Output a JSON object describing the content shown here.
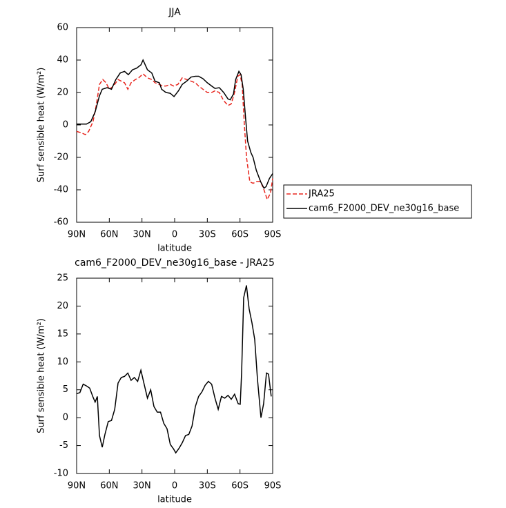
{
  "chart_data": [
    {
      "type": "line",
      "title": "JJA",
      "x_label": "latitude",
      "y_label": "Surf sensible heat (W/m²)",
      "xlim": [
        90,
        -90
      ],
      "xticks": [
        {
          "value": 90,
          "label": "90N"
        },
        {
          "value": 60,
          "label": "60N"
        },
        {
          "value": 30,
          "label": "30N"
        },
        0,
        {
          "value": -30,
          "label": "30S"
        },
        {
          "value": -60,
          "label": "60S"
        },
        {
          "value": -90,
          "label": "90S"
        }
      ],
      "ylim": [
        -60,
        60
      ],
      "yticks": [
        -60,
        -40,
        -20,
        0,
        20,
        40,
        60
      ],
      "legend": "right",
      "series": [
        {
          "name": "JRA25",
          "color": "#e8261e",
          "dash": true,
          "x": [
            90,
            85,
            82,
            79,
            75,
            72,
            69,
            66,
            63,
            60,
            56,
            52,
            49,
            46,
            43,
            40,
            36,
            33,
            29,
            25,
            21,
            18,
            14,
            11,
            8,
            4,
            1,
            -3,
            -7,
            -11,
            -15,
            -19,
            -22,
            -26,
            -30,
            -34,
            -37,
            -41,
            -45,
            -49,
            -52,
            -55,
            -58,
            -60,
            -62,
            -64,
            -66,
            -69,
            -72,
            -75,
            -79,
            -82,
            -85,
            -88,
            -90
          ],
          "values": [
            -4,
            -5,
            -6,
            -4,
            2,
            12,
            25,
            28,
            26,
            22,
            24,
            28,
            27,
            26,
            22,
            26,
            28,
            29,
            31.5,
            29,
            28,
            26,
            25,
            24,
            24,
            25,
            24,
            25,
            29,
            28,
            27,
            26,
            24,
            22,
            20,
            20,
            21,
            20,
            15,
            12,
            13,
            20,
            30,
            31,
            25,
            0,
            -20,
            -35,
            -36,
            -35,
            -35,
            -40,
            -46,
            -42,
            -33
          ]
        },
        {
          "name": "cam6_F2000_DEV_ne30g16_base",
          "color": "#000000",
          "dash": false,
          "x": [
            90,
            81,
            77,
            73,
            69,
            66.5,
            62,
            58,
            54,
            50,
            46,
            42.5,
            38.7,
            35,
            31,
            29,
            25,
            21,
            18,
            14,
            12,
            8,
            4,
            0.6,
            -3.5,
            -7,
            -11,
            -15,
            -19,
            -22,
            -26,
            -30,
            -34,
            -37,
            -41,
            -45,
            -49,
            -51,
            -54,
            -56,
            -59,
            -61,
            -63,
            -65,
            -67,
            -70,
            -72,
            -75,
            -79,
            -82,
            -84,
            -87,
            -90
          ],
          "values": [
            0.5,
            0.5,
            2,
            8,
            18,
            22,
            23,
            22,
            28,
            32,
            33,
            31,
            34,
            35,
            37,
            40,
            34,
            32,
            27,
            26,
            22,
            20,
            19.5,
            17.5,
            21,
            25,
            27,
            29.5,
            30,
            30,
            28.5,
            26,
            24,
            22.5,
            23,
            20,
            16,
            15.5,
            19,
            28,
            33,
            31,
            22,
            5,
            -10,
            -17,
            -20,
            -28,
            -35,
            -39,
            -38,
            -33,
            -30
          ]
        }
      ]
    },
    {
      "type": "line",
      "title": "cam6_F2000_DEV_ne30g16_base - JRA25",
      "x_label": "latitude",
      "y_label": "Surf sensible heat (W/m²)",
      "xlim": [
        90,
        -90
      ],
      "xticks": [
        {
          "value": 90,
          "label": "90N"
        },
        {
          "value": 60,
          "label": "60N"
        },
        {
          "value": 30,
          "label": "30N"
        },
        0,
        {
          "value": -30,
          "label": "30S"
        },
        {
          "value": -60,
          "label": "60S"
        },
        {
          "value": -90,
          "label": "90S"
        }
      ],
      "ylim": [
        -10,
        25
      ],
      "yticks": [
        -10,
        -5,
        0,
        5,
        10,
        15,
        20,
        25
      ],
      "series": [
        {
          "color": "#000000",
          "dash": false,
          "x": [
            90,
            87,
            84,
            81,
            78,
            75,
            73,
            71,
            69,
            66.5,
            64,
            61,
            58,
            55,
            52,
            49,
            46,
            43,
            40,
            37,
            34,
            31,
            28,
            25,
            22,
            19,
            16,
            13,
            10,
            7,
            4,
            1,
            -1,
            -4,
            -7,
            -10,
            -13,
            -16,
            -19,
            -22,
            -25,
            -28,
            -31,
            -34,
            -37,
            -40,
            -43,
            -46,
            -49,
            -52,
            -55,
            -58.3,
            -60.2,
            -61.5,
            -63.4,
            -65.9,
            -68.4,
            -71,
            -73.5,
            -76,
            -79.2,
            -81.7,
            -84.3,
            -86.2,
            -88.7
          ],
          "values": [
            4.3,
            4.5,
            6,
            5.7,
            5.3,
            3.7,
            2.8,
            3.8,
            -3.2,
            -5.3,
            -3,
            -0.7,
            -0.5,
            1.5,
            6.2,
            7.2,
            7.4,
            8,
            6.7,
            7.2,
            6.5,
            8.5,
            6,
            3.5,
            5,
            2,
            1,
            1,
            -1,
            -2,
            -4.8,
            -5.6,
            -6.3,
            -5.5,
            -4.5,
            -3.2,
            -3,
            -1.5,
            2,
            3.8,
            4.6,
            5.8,
            6.5,
            6,
            3.5,
            1.5,
            3.8,
            3.5,
            4,
            3.3,
            4.2,
            2.5,
            2.4,
            8,
            21.5,
            23.7,
            19.5,
            17,
            14,
            7,
            0,
            2.5,
            8,
            7.8,
            3.8
          ]
        }
      ]
    }
  ]
}
